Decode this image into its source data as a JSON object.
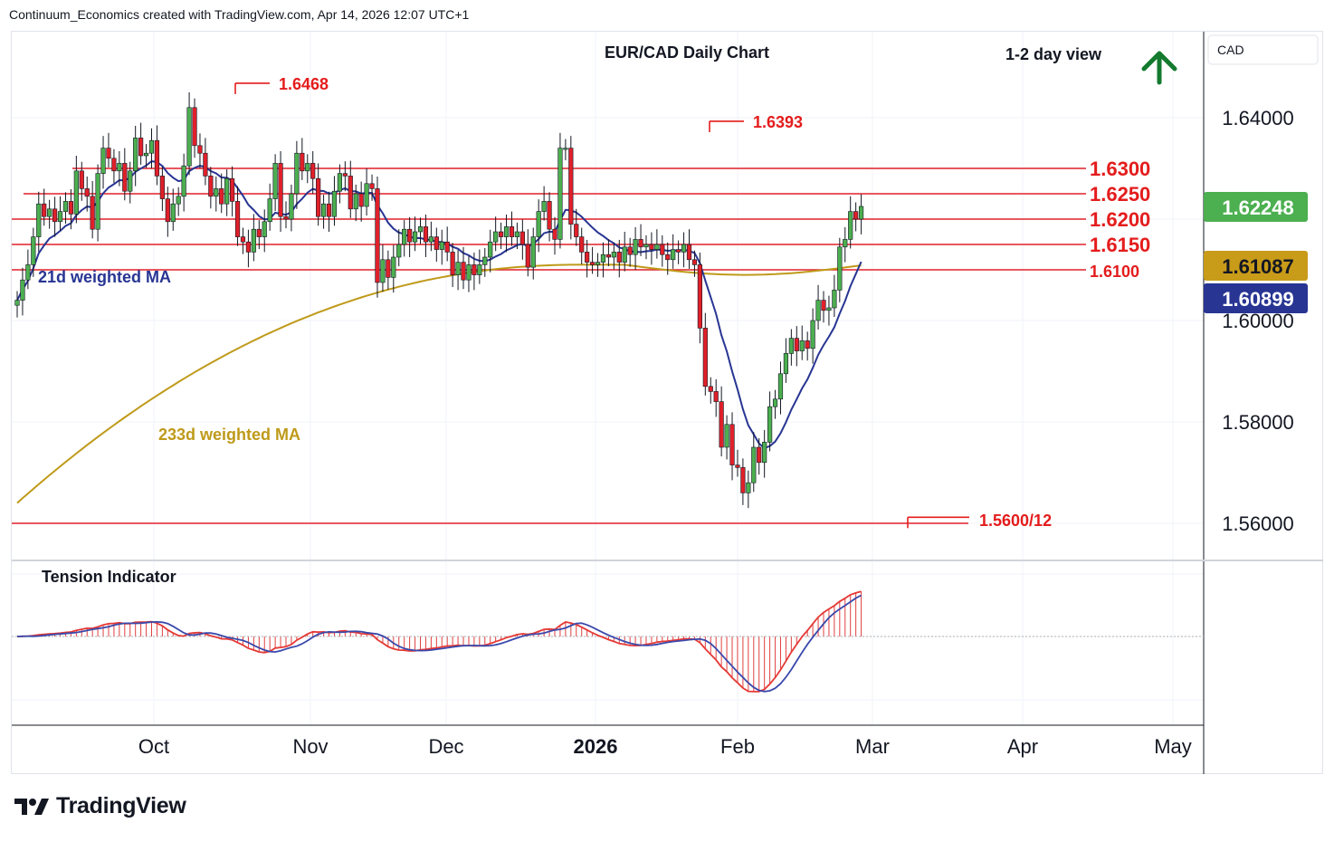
{
  "header": {
    "attribution": "Continuum_Economics created with TradingView.com, Apr 14, 2026 12:07 UTC+1"
  },
  "chart": {
    "title": "EUR/CAD Daily Chart",
    "view_label": "1-2 day view",
    "view_icon": "up-arrow-icon",
    "currency": "CAD",
    "colors": {
      "up": "#4caf50",
      "down": "#e0202a",
      "ma21": "#283593",
      "ma233": "#bf9a1a",
      "levels": "#e0202a",
      "annot": "#e41c1c"
    }
  },
  "footer": {
    "brand": "TradingView"
  },
  "chart_data": {
    "type": "candlestick",
    "title": "EUR/CAD Daily Chart",
    "ylim": [
      1.551,
      1.653
    ],
    "y_ticks": [
      "1.64000",
      "1.60000",
      "1.58000",
      "1.56000"
    ],
    "x_ticks": [
      "Oct",
      "Nov",
      "Dec",
      "2026",
      "Feb",
      "Mar",
      "Apr",
      "May"
    ],
    "last_price": "1.62248",
    "ma_labels": {
      "ma233_value": "1.61087",
      "ma21_value": "1.60899"
    },
    "series_labels": {
      "ma21": "21d weighted MA",
      "ma233": "233d weighted MA"
    },
    "levels": [
      {
        "label": "1.6300",
        "value": 1.63
      },
      {
        "label": "1.6250",
        "value": 1.625
      },
      {
        "label": "1.6200",
        "value": 1.62
      },
      {
        "label": "1.6150",
        "value": 1.615
      },
      {
        "label": "1.6100",
        "value": 1.61
      },
      {
        "label": "1.5600/12",
        "value": 1.56
      }
    ],
    "annotations": [
      {
        "label": "1.6468",
        "value": 1.6468
      },
      {
        "label": "1.6393",
        "value": 1.6393
      },
      {
        "label": "1.5600/12",
        "value": 1.5612
      }
    ],
    "closes": [
      1.604,
      1.608,
      1.611,
      1.6165,
      1.623,
      1.6205,
      1.622,
      1.6195,
      1.6215,
      1.6235,
      1.621,
      1.6295,
      1.626,
      1.6245,
      1.618,
      1.629,
      1.634,
      1.632,
      1.6295,
      1.631,
      1.6255,
      1.6295,
      1.636,
      1.6325,
      1.633,
      1.6355,
      1.6285,
      1.624,
      1.6195,
      1.623,
      1.6245,
      1.6305,
      1.642,
      1.6345,
      1.633,
      1.6285,
      1.6245,
      1.626,
      1.623,
      1.628,
      1.6235,
      1.6165,
      1.6155,
      1.6135,
      1.618,
      1.6165,
      1.6195,
      1.624,
      1.631,
      1.6205,
      1.62,
      1.625,
      1.633,
      1.6295,
      1.631,
      1.628,
      1.6205,
      1.623,
      1.6205,
      1.6255,
      1.629,
      1.6285,
      1.622,
      1.625,
      1.6225,
      1.627,
      1.626,
      1.6075,
      1.612,
      1.6085,
      1.6125,
      1.615,
      1.618,
      1.6155,
      1.6175,
      1.6185,
      1.6155,
      1.6165,
      1.614,
      1.6155,
      1.6135,
      1.609,
      1.6115,
      1.608,
      1.611,
      1.609,
      1.611,
      1.6125,
      1.6155,
      1.6175,
      1.6165,
      1.6185,
      1.6165,
      1.6175,
      1.615,
      1.6105,
      1.6165,
      1.6215,
      1.6235,
      1.618,
      1.616,
      1.634,
      1.634,
      1.619,
      1.6165,
      1.6135,
      1.6115,
      1.611,
      1.6115,
      1.613,
      1.6125,
      1.6135,
      1.6115,
      1.6145,
      1.613,
      1.616,
      1.6145,
      1.615,
      1.614,
      1.615,
      1.613,
      1.612,
      1.614,
      1.6135,
      1.615,
      1.612,
      1.611,
      1.5985,
      1.587,
      1.586,
      1.584,
      1.575,
      1.5795,
      1.5715,
      1.571,
      1.566,
      1.568,
      1.575,
      1.572,
      1.576,
      1.583,
      1.5845,
      1.5895,
      1.5935,
      1.5965,
      1.594,
      1.596,
      1.5945,
      1.6,
      1.604,
      1.602,
      1.6025,
      1.606,
      1.6145,
      1.616,
      1.6215,
      1.62,
      1.6225
    ]
  }
}
